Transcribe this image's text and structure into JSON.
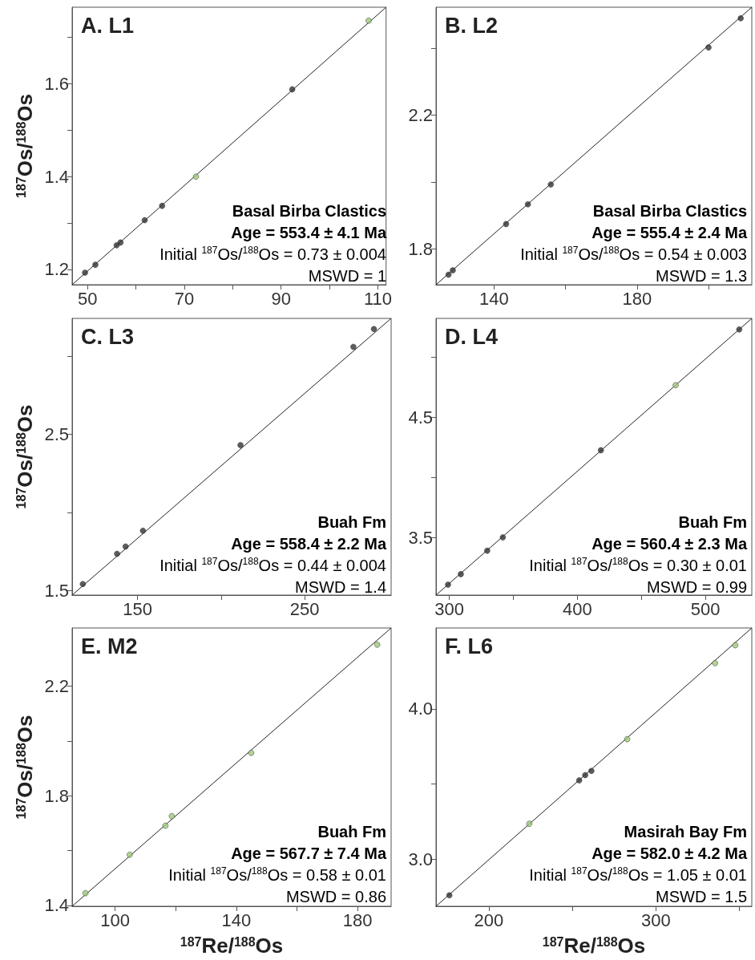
{
  "chart_data": [
    {
      "type": "scatter",
      "title": "A. L1",
      "ylabel": "$^{187}$Os/$^{188}$Os",
      "xlim": [
        46.8,
        111.7
      ],
      "ylim": [
        1.167,
        1.765
      ],
      "xticks": [
        50,
        {
          "value": 60,
          "label": null
        },
        70,
        {
          "value": 80,
          "label": null
        },
        90,
        {
          "value": 100,
          "label": null
        },
        110
      ],
      "yticks": [
        1.2,
        {
          "value": 1.3,
          "label": null
        },
        1.4,
        {
          "value": 1.5,
          "label": null
        },
        1.6,
        {
          "value": 1.7,
          "label": null
        }
      ],
      "grid": false,
      "series": [
        {
          "marker": "circle",
          "x": [
            49.46,
            51.6,
            56.0,
            56.8,
            61.8,
            65.4,
            72.4,
            92.3,
            108.1
          ],
          "values": [
            1.193,
            1.21,
            1.252,
            1.258,
            1.306,
            1.337,
            1.4,
            1.588,
            1.736
          ],
          "colors": [
            "#333333",
            "#333333",
            "#333333",
            "#333333",
            "#333333",
            "#333333",
            "#9cc978",
            "#333333",
            "#9cc978"
          ]
        },
        {
          "type": "line",
          "marker": "none",
          "line_style": "solid",
          "color": "#222222",
          "x": [
            46.8,
            111.7
          ],
          "values": [
            1.167,
            1.765
          ]
        }
      ],
      "annotations": [
        "Basal Birba Clastics",
        "Age = 553.4 ± 4.1 Ma",
        "Initial $^{187}$Os/$^{188}$Os = 0.73 ± 0.004",
        "MSWD = 1"
      ]
    },
    {
      "type": "scatter",
      "title": "B. L2",
      "xlim": [
        123.8,
        212.1
      ],
      "ylim": [
        1.694,
        2.522
      ],
      "xticks": [
        140,
        {
          "value": 160,
          "label": null
        },
        180,
        {
          "value": 200,
          "label": null
        }
      ],
      "yticks": [
        1.8,
        {
          "value": 2.0,
          "label": null
        },
        2.2,
        {
          "value": 2.4,
          "label": null
        }
      ],
      "grid": false,
      "series": [
        {
          "marker": "circle",
          "x": [
            127.3,
            128.5,
            143.4,
            149.5,
            155.9,
            200.0,
            209.0
          ],
          "values": [
            1.724,
            1.737,
            1.875,
            1.934,
            1.993,
            2.402,
            2.489
          ],
          "colors": [
            "#333333",
            "#333333",
            "#333333",
            "#333333",
            "#333333",
            "#333333",
            "#333333"
          ]
        },
        {
          "type": "line",
          "marker": "none",
          "line_style": "solid",
          "color": "#222222",
          "x": [
            123.8,
            212.1
          ],
          "values": [
            1.694,
            2.522
          ]
        }
      ],
      "annotations": [
        "Basal Birba Clastics",
        "Age = 555.4 ± 2.4 Ma",
        "Initial $^{187}$Os/$^{188}$Os = 0.54 ± 0.003",
        "MSWD = 1.3"
      ]
    },
    {
      "type": "scatter",
      "title": "C. L3",
      "ylabel": "$^{187}$Os/$^{188}$Os",
      "xlim": [
        110.8,
        301.8
      ],
      "ylim": [
        1.471,
        3.242
      ],
      "xticks": [
        150,
        {
          "value": 200,
          "label": null
        },
        250
      ],
      "yticks": [
        1.5,
        {
          "value": 2.0,
          "label": null
        },
        2.5,
        {
          "value": 3.0,
          "label": null
        }
      ],
      "grid": false,
      "series": [
        {
          "marker": "circle",
          "x": [
            117.2,
            137.7,
            142.8,
            153.2,
            211.6,
            279.2,
            291.5
          ],
          "values": [
            1.542,
            1.735,
            1.782,
            1.883,
            2.431,
            3.06,
            3.174
          ],
          "colors": [
            "#333333",
            "#333333",
            "#333333",
            "#333333",
            "#333333",
            "#333333",
            "#333333"
          ]
        },
        {
          "type": "line",
          "marker": "none",
          "line_style": "solid",
          "color": "#222222",
          "x": [
            110.8,
            301.8
          ],
          "values": [
            1.471,
            3.242
          ]
        }
      ],
      "annotations": [
        "Buah Fm",
        "Age = 558.4 ± 2.2 Ma",
        "Initial $^{187}$Os/$^{188}$Os = 0.44 ± 0.004",
        "MSWD = 1.4"
      ]
    },
    {
      "type": "scatter",
      "title": "D. L4",
      "xlim": [
        289.6,
        536.3
      ],
      "ylim": [
        3.022,
        5.322
      ],
      "xticks": [
        300,
        {
          "value": 350,
          "label": null
        },
        400,
        {
          "value": 450,
          "label": null
        },
        500
      ],
      "yticks": [
        3.5,
        {
          "value": 4.0,
          "label": null
        },
        4.5,
        {
          "value": 5.0,
          "label": null
        }
      ],
      "grid": false,
      "series": [
        {
          "marker": "circle",
          "x": [
            299.0,
            309.0,
            329.6,
            341.8,
            418.4,
            476.8,
            526.5
          ],
          "values": [
            3.109,
            3.196,
            3.391,
            3.502,
            4.226,
            4.767,
            5.23
          ],
          "colors": [
            "#333333",
            "#333333",
            "#333333",
            "#333333",
            "#333333",
            "#9cc978",
            "#333333"
          ]
        },
        {
          "type": "line",
          "marker": "none",
          "line_style": "solid",
          "color": "#222222",
          "x": [
            289.6,
            536.3
          ],
          "values": [
            3.022,
            5.322
          ]
        }
      ],
      "annotations": [
        "Buah Fm",
        "Age = 560.4 ± 2.3 Ma",
        "Initial $^{187}$Os/$^{188}$Os = 0.30 ± 0.01",
        "MSWD = 0.99"
      ]
    },
    {
      "type": "scatter",
      "title": "E. M2",
      "xlabel": "$^{187}$Re/$^{188}$Os",
      "ylabel": "$^{187}$Os/$^{188}$Os",
      "xlim": [
        85.8,
        191.1
      ],
      "ylim": [
        1.397,
        2.413
      ],
      "xticks": [
        100,
        {
          "value": 120,
          "label": null
        },
        140,
        {
          "value": 160,
          "label": null
        },
        180
      ],
      "yticks": [
        1.4,
        {
          "value": 1.6,
          "label": null
        },
        1.8,
        {
          "value": 2.0,
          "label": null
        },
        2.2
      ],
      "grid": false,
      "series": [
        {
          "marker": "circle",
          "x": [
            90.2,
            104.8,
            116.6,
            118.7,
            144.9,
            186.5
          ],
          "values": [
            1.445,
            1.585,
            1.691,
            1.726,
            1.957,
            2.352
          ],
          "colors": [
            "#9cc978",
            "#9cc978",
            "#9cc978",
            "#9cc978",
            "#9cc978",
            "#9cc978"
          ]
        },
        {
          "type": "line",
          "marker": "none",
          "line_style": "solid",
          "color": "#222222",
          "x": [
            85.8,
            191.1
          ],
          "values": [
            1.397,
            2.413
          ]
        }
      ],
      "annotations": [
        "Buah Fm",
        "Age = 567.7 ± 7.4 Ma",
        "Initial $^{187}$Os/$^{188}$Os = 0.58 ± 0.01",
        "MSWD = 0.86"
      ]
    },
    {
      "type": "scatter",
      "title": "F. L6",
      "xlabel": "$^{187}$Re/$^{188}$Os",
      "xlim": [
        168.4,
        357.4
      ],
      "ylim": [
        2.687,
        4.539
      ],
      "xticks": [
        200,
        {
          "value": 250,
          "label": null
        },
        300,
        {
          "value": 350,
          "label": null
        }
      ],
      "yticks": [
        {
          "value": 3,
          "label": "3.0"
        },
        {
          "value": 3.5,
          "label": null
        },
        {
          "value": 4,
          "label": "4.0"
        }
      ],
      "grid": false,
      "series": [
        {
          "marker": "circle",
          "x": [
            176.4,
            224.2,
            254.1,
            257.7,
            261.4,
            282.8,
            335.4,
            347.5
          ],
          "values": [
            2.76,
            3.236,
            3.525,
            3.56,
            3.588,
            3.799,
            4.305,
            4.424
          ],
          "colors": [
            "#333333",
            "#9cc978",
            "#333333",
            "#333333",
            "#333333",
            "#9cc978",
            "#9cc978",
            "#9cc978"
          ]
        },
        {
          "type": "line",
          "marker": "none",
          "line_style": "solid",
          "color": "#222222",
          "x": [
            168.4,
            357.4
          ],
          "values": [
            2.687,
            4.539
          ]
        }
      ],
      "annotations": [
        "Masirah Bay Fm",
        "Age = 582.0 ± 4.2 Ma",
        "Initial $^{187}$Os/$^{188}$Os = 1.05 ± 0.01",
        "MSWD = 1.5"
      ]
    }
  ]
}
